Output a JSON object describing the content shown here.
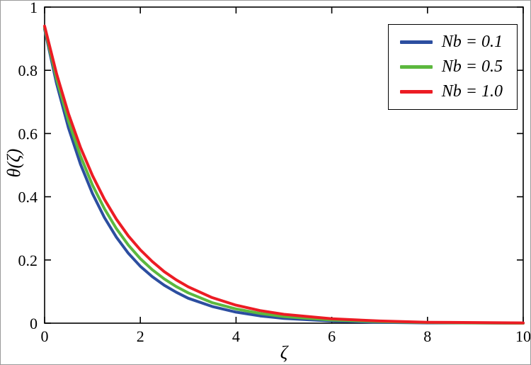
{
  "chart_data": {
    "type": "line",
    "title": "",
    "xlabel": "ζ",
    "ylabel": "θ(ζ)",
    "xlim": [
      0,
      10
    ],
    "ylim": [
      0,
      1
    ],
    "xticks": [
      0,
      2,
      4,
      6,
      8,
      10
    ],
    "yticks": [
      0,
      0.2,
      0.4,
      0.6,
      0.8,
      1
    ],
    "grid": false,
    "legend_position": "top-right",
    "axis_color": "#000000",
    "x": [
      0,
      0.25,
      0.5,
      0.75,
      1,
      1.25,
      1.5,
      1.75,
      2,
      2.25,
      2.5,
      2.75,
      3,
      3.5,
      4,
      4.5,
      5,
      6,
      7,
      8,
      9,
      10
    ],
    "series": [
      {
        "name": "Nb = 0.1",
        "color": "#2c4ea0",
        "values": [
          0.93,
          0.758,
          0.617,
          0.503,
          0.41,
          0.334,
          0.272,
          0.221,
          0.18,
          0.147,
          0.12,
          0.098,
          0.079,
          0.053,
          0.035,
          0.023,
          0.015,
          0.007,
          0.003,
          0.001,
          0.001,
          0.0
        ]
      },
      {
        "name": "Nb = 0.5",
        "color": "#5cb83e",
        "values": [
          0.935,
          0.773,
          0.639,
          0.529,
          0.437,
          0.362,
          0.299,
          0.247,
          0.204,
          0.169,
          0.14,
          0.116,
          0.096,
          0.065,
          0.045,
          0.031,
          0.021,
          0.01,
          0.005,
          0.002,
          0.001,
          0.0
        ]
      },
      {
        "name": "Nb = 1.0",
        "color": "#ec1c24",
        "values": [
          0.94,
          0.789,
          0.662,
          0.556,
          0.467,
          0.392,
          0.329,
          0.276,
          0.232,
          0.195,
          0.163,
          0.137,
          0.115,
          0.081,
          0.057,
          0.04,
          0.028,
          0.014,
          0.007,
          0.003,
          0.002,
          0.001
        ]
      }
    ]
  }
}
